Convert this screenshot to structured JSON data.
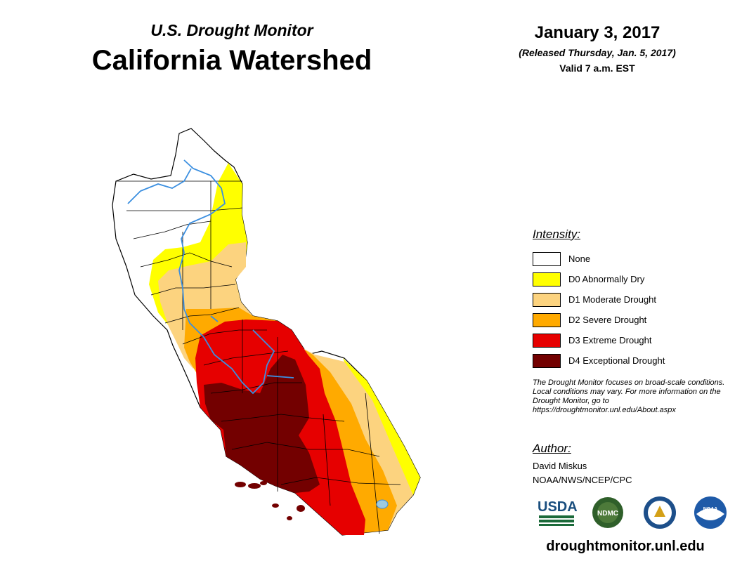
{
  "header": {
    "subtitle": "U.S. Drought Monitor",
    "title": "California Watershed",
    "date": "January 3, 2017",
    "released": "(Released Thursday, Jan. 5, 2017)",
    "valid": "Valid 7 a.m. EST"
  },
  "legend": {
    "title": "Intensity:",
    "items": [
      {
        "label": "None",
        "color": "#ffffff"
      },
      {
        "label": "D0 Abnormally Dry",
        "color": "#ffff00"
      },
      {
        "label": "D1 Moderate Drought",
        "color": "#fcd37f"
      },
      {
        "label": "D2 Severe Drought",
        "color": "#ffaa00"
      },
      {
        "label": "D3 Extreme Drought",
        "color": "#e60000"
      },
      {
        "label": "D4 Exceptional Drought",
        "color": "#730000"
      }
    ]
  },
  "note": "The Drought Monitor focuses on broad-scale conditions. Local conditions may vary. For more information on the Drought Monitor, go to https://droughtmonitor.unl.edu/About.aspx",
  "author": {
    "title": "Author:",
    "name": "David Miskus",
    "org": "NOAA/NWS/NCEP/CPC"
  },
  "logos": [
    {
      "name": "usda-logo",
      "text": "USDA"
    },
    {
      "name": "ndmc-logo",
      "text": "NDMC"
    },
    {
      "name": "doc-logo",
      "text": ""
    },
    {
      "name": "noaa-logo",
      "text": "NOAA"
    }
  ],
  "website": "droughtmonitor.unl.edu",
  "colors": {
    "river": "#3b8fe0",
    "boundary": "#000000"
  }
}
